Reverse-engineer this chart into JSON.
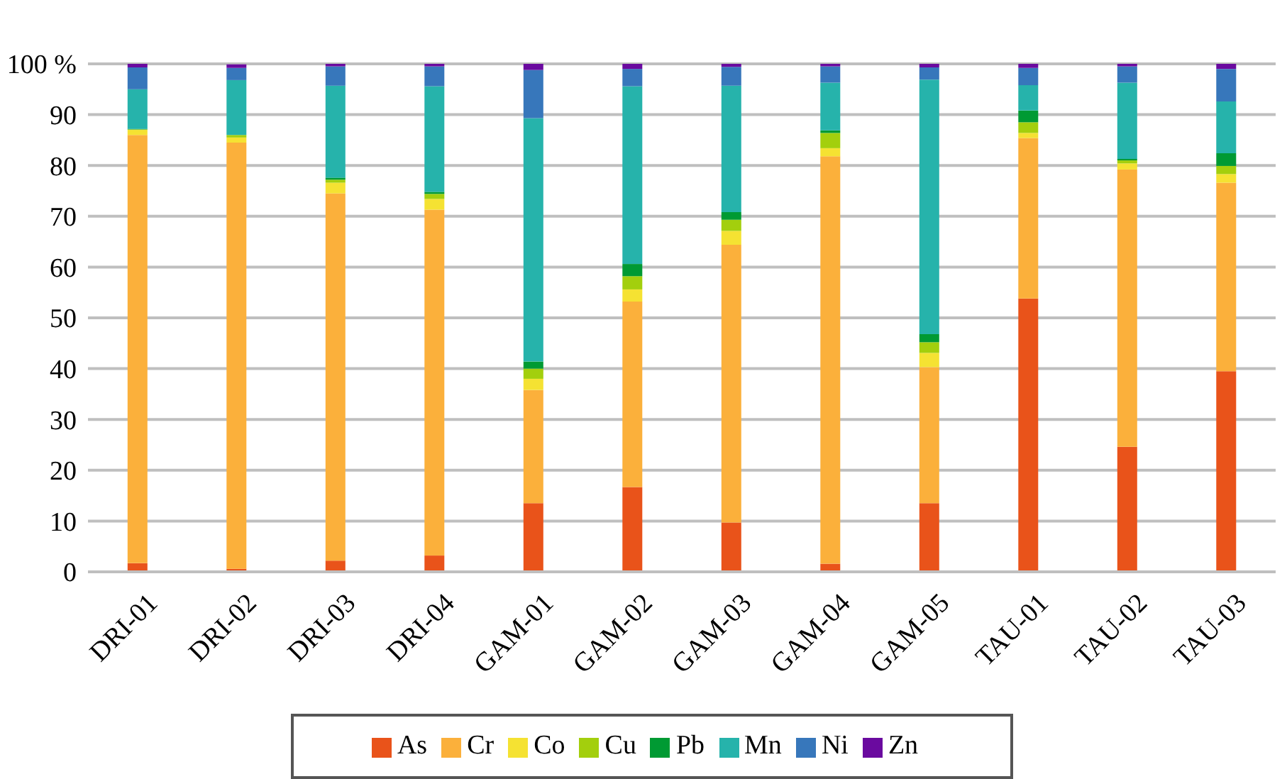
{
  "chart_data": {
    "type": "bar",
    "stacked": true,
    "categories": [
      "DRI-01",
      "DRI-02",
      "DRI-03",
      "DRI-04",
      "GAM-01",
      "GAM-02",
      "GAM-03",
      "GAM-04",
      "GAM-05",
      "TAU-01",
      "TAU-02",
      "TAU-03"
    ],
    "series": [
      {
        "name": "As",
        "color": "#e9531a",
        "values": [
          1.7,
          0.6,
          2.2,
          3.2,
          13.5,
          16.7,
          9.7,
          1.6,
          13.5,
          53.8,
          24.6,
          39.5
        ]
      },
      {
        "name": "Cr",
        "color": "#fbb03b",
        "values": [
          84.3,
          83.9,
          72.3,
          68.1,
          22.3,
          36.5,
          54.7,
          80.2,
          26.8,
          31.6,
          54.6,
          37.1
        ]
      },
      {
        "name": "Co",
        "color": "#f5e232",
        "values": [
          1.0,
          1.0,
          2.1,
          2.1,
          2.2,
          2.4,
          2.7,
          1.6,
          2.8,
          1.0,
          1.2,
          1.7
        ]
      },
      {
        "name": "Cu",
        "color": "#a3cf0d",
        "values": [
          0.1,
          0.5,
          0.6,
          1.0,
          2.0,
          2.6,
          2.2,
          3.0,
          2.1,
          2.1,
          0.6,
          1.6
        ]
      },
      {
        "name": "Pb",
        "color": "#009a33",
        "values": [
          0.1,
          null,
          0.4,
          0.4,
          1.4,
          2.4,
          1.5,
          0.5,
          1.6,
          2.3,
          0.3,
          2.5
        ]
      },
      {
        "name": "Mn",
        "color": "#26b3ab",
        "values": [
          7.8,
          10.8,
          18.1,
          20.8,
          47.9,
          35.0,
          24.9,
          9.4,
          50.1,
          5.0,
          15.0,
          10.2
        ]
      },
      {
        "name": "Ni",
        "color": "#3777bb",
        "values": [
          4.3,
          2.4,
          3.8,
          3.9,
          9.5,
          3.4,
          3.7,
          3.2,
          2.4,
          3.4,
          3.2,
          6.4
        ]
      },
      {
        "name": "Zn",
        "color": "#6a0a9f",
        "values": [
          0.7,
          0.7,
          0.5,
          0.5,
          1.2,
          1.0,
          0.6,
          0.5,
          0.7,
          0.8,
          0.5,
          1.0
        ]
      }
    ],
    "ylim": [
      0,
      100
    ],
    "yticks": [
      0,
      10,
      20,
      30,
      40,
      50,
      60,
      70,
      80,
      90,
      {
        "value": 100,
        "label": "100 %"
      }
    ],
    "grid": "y",
    "legend": "bottom"
  }
}
